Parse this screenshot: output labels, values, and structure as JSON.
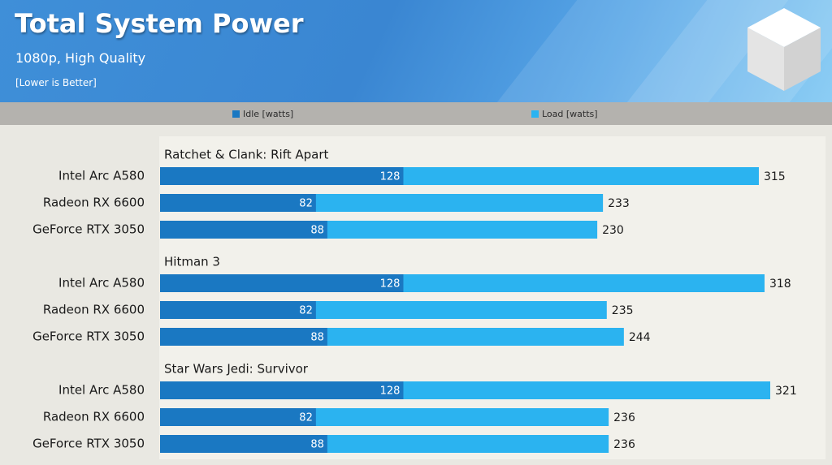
{
  "chart_data": {
    "type": "bar",
    "orientation": "horizontal",
    "title": "Total System Power",
    "subtitle": "1080p, High Quality",
    "note": "[Lower is Better]",
    "legend_position": "top",
    "series": [
      {
        "name": "Idle [watts]",
        "color": "#1a78c2"
      },
      {
        "name": "Load [watts]",
        "color": "#2bb3f0"
      }
    ],
    "groups": [
      {
        "title": "Ratchet & Clank: Rift Apart",
        "rows": [
          {
            "label": "Intel Arc A580",
            "idle": 128,
            "load": 315
          },
          {
            "label": "Radeon RX 6600",
            "idle": 82,
            "load": 233
          },
          {
            "label": "GeForce RTX 3050",
            "idle": 88,
            "load": 230
          }
        ]
      },
      {
        "title": "Hitman 3",
        "rows": [
          {
            "label": "Intel Arc A580",
            "idle": 128,
            "load": 318
          },
          {
            "label": "Radeon RX 6600",
            "idle": 82,
            "load": 235
          },
          {
            "label": "GeForce RTX 3050",
            "idle": 88,
            "load": 244
          }
        ]
      },
      {
        "title": "Star Wars Jedi: Survivor",
        "rows": [
          {
            "label": "Intel Arc A580",
            "idle": 128,
            "load": 321
          },
          {
            "label": "Radeon RX 6600",
            "idle": 82,
            "load": 236
          },
          {
            "label": "GeForce RTX 3050",
            "idle": 88,
            "load": 236
          }
        ]
      }
    ],
    "xlim": [
      0,
      321
    ],
    "grid": false
  }
}
